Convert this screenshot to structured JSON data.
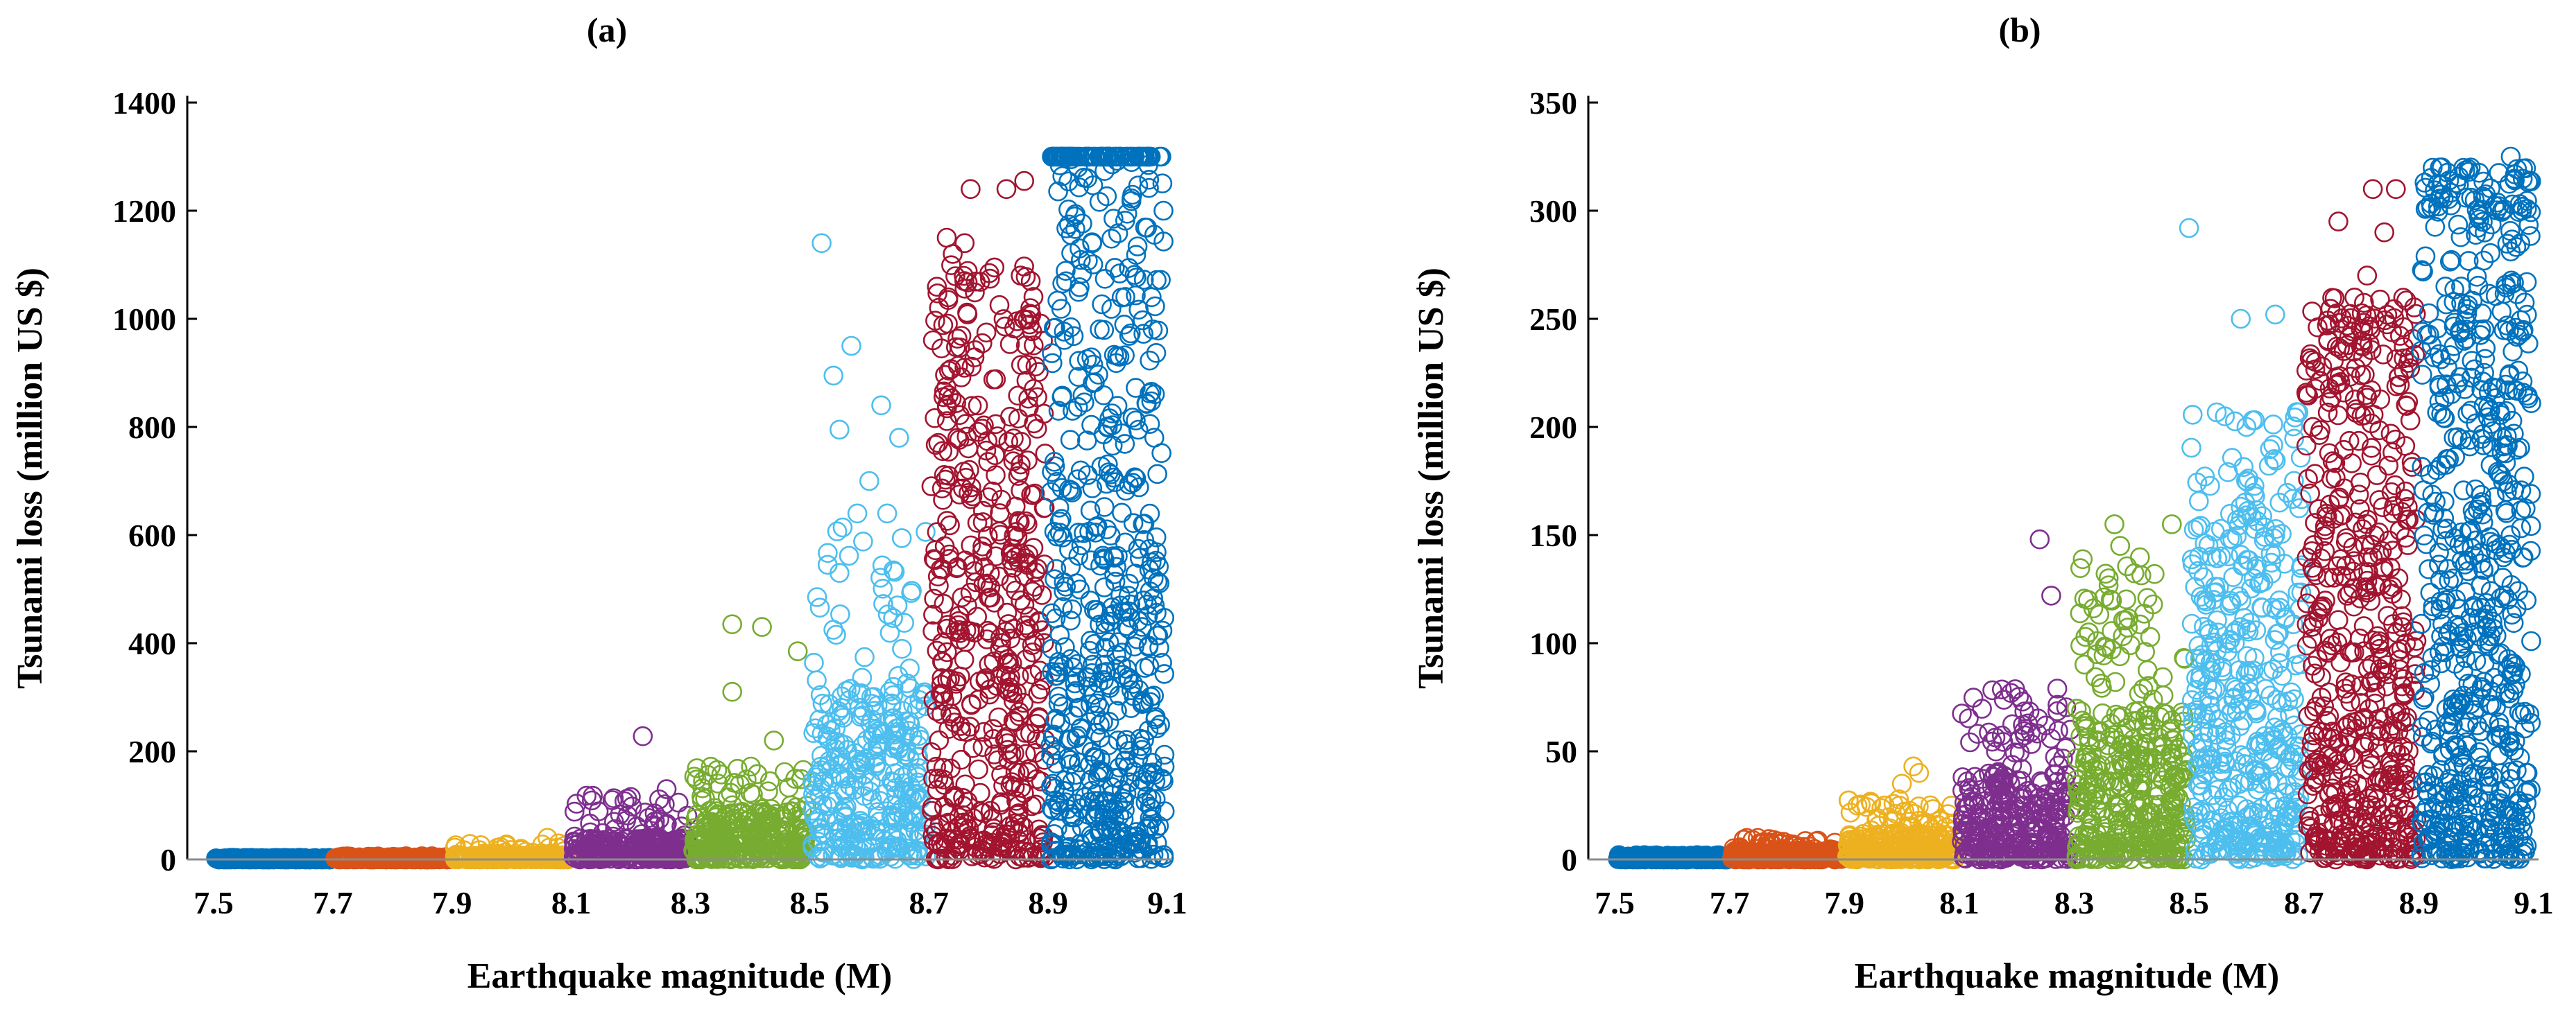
{
  "figure": {
    "panel_a_label": "(a)",
    "panel_b_label": "(b)"
  },
  "colors": {
    "band_7_5": "#0072BD",
    "band_7_7": "#D95319",
    "band_7_9": "#EDB120",
    "band_8_1": "#7E2F8E",
    "band_8_3": "#77AC30",
    "band_8_5": "#4DBEEE",
    "band_8_7": "#A2142F",
    "band_8_9": "#0072BD"
  },
  "chart_data": [
    {
      "type": "scatter",
      "title": "(a)",
      "xlabel": "Earthquake magnitude (M)",
      "ylabel": "Tsunami loss (million US $)",
      "xlim": [
        7.5,
        9.1
      ],
      "ylim": [
        0,
        1400
      ],
      "xticks": [
        "7.5",
        "7.7",
        "7.9",
        "8.1",
        "8.3",
        "8.5",
        "8.7",
        "8.9",
        "9.1"
      ],
      "yticks": [
        "0",
        "200",
        "400",
        "600",
        "800",
        "1000",
        "1200",
        "1400"
      ],
      "grid": false,
      "series": [
        {
          "name": "M 7.5-7.7",
          "color": "#0072BD",
          "x_range": [
            7.5,
            7.7
          ],
          "count": 300,
          "typical_max": 2,
          "extreme_max": 3,
          "outliers": []
        },
        {
          "name": "M 7.7-7.9",
          "color": "#D95319",
          "x_range": [
            7.7,
            7.9
          ],
          "count": 300,
          "typical_max": 3,
          "extreme_max": 6,
          "outliers": []
        },
        {
          "name": "M 7.9-8.1",
          "color": "#EDB120",
          "x_range": [
            7.9,
            8.1
          ],
          "count": 300,
          "typical_max": 8,
          "extreme_max": 30,
          "outliers": [
            [
              8.06,
              40
            ]
          ]
        },
        {
          "name": "M 8.1-8.3",
          "color": "#7E2F8E",
          "x_range": [
            8.1,
            8.3
          ],
          "count": 300,
          "typical_max": 40,
          "extreme_max": 120,
          "outliers": [
            [
              8.22,
              228
            ],
            [
              8.26,
              130
            ],
            [
              8.28,
              105
            ],
            [
              8.24,
              85
            ]
          ]
        },
        {
          "name": "M 8.3-8.5",
          "color": "#77AC30",
          "x_range": [
            8.3,
            8.5
          ],
          "count": 320,
          "typical_max": 90,
          "extreme_max": 180,
          "outliers": [
            [
              8.37,
              435
            ],
            [
              8.42,
              430
            ],
            [
              8.37,
              310
            ],
            [
              8.44,
              220
            ],
            [
              8.48,
              385
            ]
          ]
        },
        {
          "name": "M 8.5-8.7",
          "color": "#4DBEEE",
          "x_range": [
            8.5,
            8.7
          ],
          "count": 340,
          "typical_max": 330,
          "extreme_max": 620,
          "outliers": [
            [
              8.52,
              1140
            ],
            [
              8.57,
              950
            ],
            [
              8.54,
              895
            ],
            [
              8.55,
              795
            ],
            [
              8.62,
              840
            ],
            [
              8.65,
              780
            ],
            [
              8.6,
              700
            ],
            [
              8.63,
              640
            ],
            [
              8.58,
              640
            ],
            [
              8.53,
              545
            ],
            [
              8.55,
              530
            ]
          ]
        },
        {
          "name": "M 8.7-8.9",
          "color": "#A2142F",
          "x_range": [
            8.7,
            8.9
          ],
          "count": 500,
          "typical_max": 900,
          "extreme_max": 1100,
          "outliers": [
            [
              8.77,
              1240
            ],
            [
              8.83,
              1240
            ],
            [
              8.86,
              1255
            ],
            [
              8.73,
              1150
            ],
            [
              8.76,
              1140
            ],
            [
              8.74,
              1120
            ],
            [
              8.81,
              1095
            ]
          ]
        },
        {
          "name": "M 8.9-9.1",
          "color": "#0072BD",
          "x_range": [
            8.9,
            9.1
          ],
          "count": 650,
          "typical_max": 1300,
          "extreme_max": 1300,
          "outliers": [
            [
              8.95,
              1280
            ],
            [
              9.04,
              1290
            ]
          ]
        }
      ]
    },
    {
      "type": "scatter",
      "title": "(b)",
      "xlabel": "Earthquake magnitude (M)",
      "ylabel": "Tsunami loss (million US $)",
      "xlim": [
        7.5,
        9.1
      ],
      "ylim": [
        0,
        350
      ],
      "xticks": [
        "7.5",
        "7.7",
        "7.9",
        "8.1",
        "8.3",
        "8.5",
        "8.7",
        "8.9",
        "9.1"
      ],
      "yticks": [
        "0",
        "50",
        "100",
        "150",
        "200",
        "250",
        "300",
        "350"
      ],
      "grid": false,
      "series": [
        {
          "name": "M 7.5-7.7",
          "color": "#0072BD",
          "x_range": [
            7.5,
            7.7
          ],
          "count": 300,
          "typical_max": 1,
          "extreme_max": 2,
          "outliers": []
        },
        {
          "name": "M 7.7-7.9",
          "color": "#D95319",
          "x_range": [
            7.7,
            7.9
          ],
          "count": 300,
          "typical_max": 4,
          "extreme_max": 10,
          "outliers": [
            [
              7.74,
              9
            ],
            [
              7.76,
              8
            ],
            [
              7.84,
              6
            ]
          ]
        },
        {
          "name": "M 7.9-8.1",
          "color": "#EDB120",
          "x_range": [
            7.9,
            8.1
          ],
          "count": 300,
          "typical_max": 12,
          "extreme_max": 28,
          "outliers": [
            [
              8.02,
              43
            ],
            [
              8.03,
              40
            ],
            [
              8.0,
              35
            ]
          ]
        },
        {
          "name": "M 8.1-8.3",
          "color": "#7E2F8E",
          "x_range": [
            8.1,
            8.3
          ],
          "count": 350,
          "typical_max": 40,
          "extreme_max": 80,
          "outliers": [
            [
              8.24,
              148
            ],
            [
              8.26,
              122
            ],
            [
              8.19,
              77
            ],
            [
              8.21,
              73
            ]
          ]
        },
        {
          "name": "M 8.3-8.5",
          "color": "#77AC30",
          "x_range": [
            8.3,
            8.5
          ],
          "count": 420,
          "typical_max": 70,
          "extreme_max": 140,
          "outliers": [
            [
              8.37,
              155
            ],
            [
              8.38,
              145
            ],
            [
              8.47,
              155
            ],
            [
              8.36,
              130
            ],
            [
              8.44,
              132
            ]
          ]
        },
        {
          "name": "M 8.5-8.7",
          "color": "#4DBEEE",
          "x_range": [
            8.5,
            8.7
          ],
          "count": 450,
          "typical_max": 160,
          "extreme_max": 210,
          "outliers": [
            [
              8.5,
              292
            ],
            [
              8.59,
              250
            ],
            [
              8.65,
              252
            ],
            [
              8.6,
              200
            ]
          ]
        },
        {
          "name": "M 8.7-8.9",
          "color": "#A2142F",
          "x_range": [
            8.7,
            8.9
          ],
          "count": 560,
          "typical_max": 230,
          "extreme_max": 260,
          "outliers": [
            [
              8.76,
              295
            ],
            [
              8.86,
              310
            ],
            [
              8.82,
              310
            ],
            [
              8.84,
              290
            ],
            [
              8.81,
              270
            ]
          ]
        },
        {
          "name": "M 8.9-9.1",
          "color": "#0072BD",
          "x_range": [
            8.9,
            9.1
          ],
          "count": 650,
          "typical_max": 300,
          "extreme_max": 320,
          "outliers": [
            [
              8.94,
              320
            ],
            [
              9.06,
              325
            ],
            [
              9.08,
              300
            ],
            [
              8.97,
              312
            ]
          ]
        }
      ]
    }
  ]
}
